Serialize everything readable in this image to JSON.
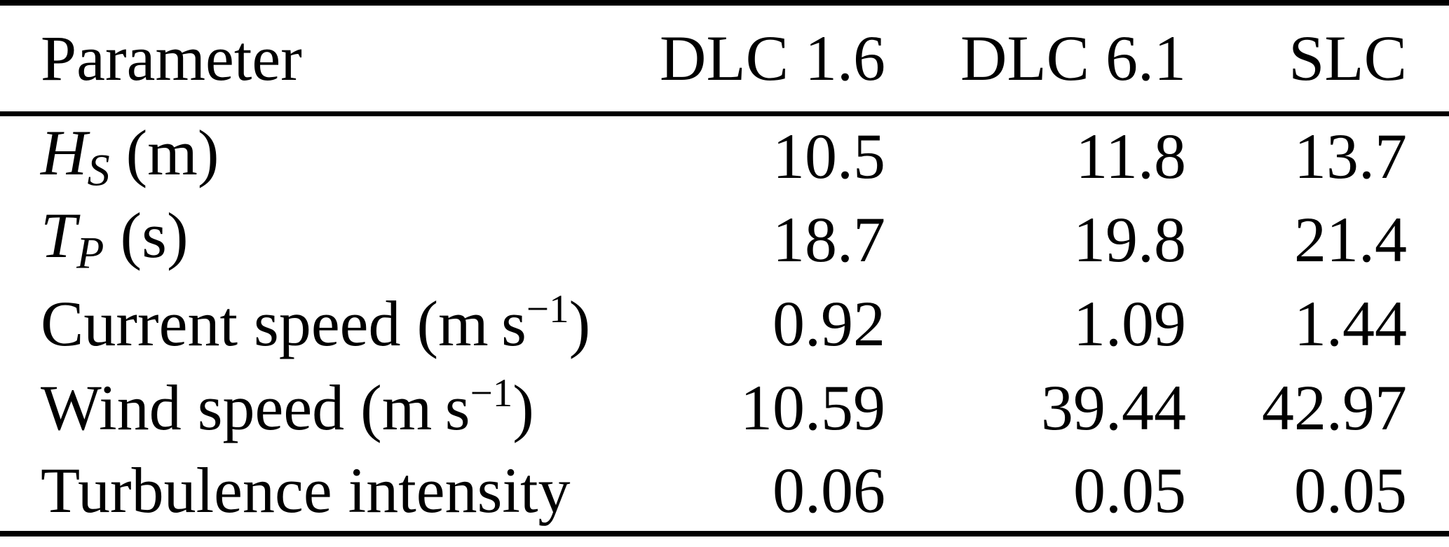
{
  "table": {
    "columns": [
      "Parameter",
      "DLC 1.6",
      "DLC 6.1",
      "SLC"
    ],
    "rows": [
      {
        "label": {
          "base": "H",
          "sub": "S",
          "unit": " (m)"
        },
        "values": [
          "10.5",
          "11.8",
          "13.7"
        ]
      },
      {
        "label": {
          "base": "T",
          "sub": "P",
          "unit": " (s)"
        },
        "values": [
          "18.7",
          "19.8",
          "21.4"
        ]
      },
      {
        "label": {
          "pre": "Current speed (m s",
          "sup": "−1",
          "post": ")"
        },
        "values": [
          "0.92",
          "1.09",
          "1.44"
        ]
      },
      {
        "label": {
          "pre": "Wind speed (m s",
          "sup": "−1",
          "post": ")"
        },
        "values": [
          "10.59",
          "39.44",
          "42.97"
        ]
      },
      {
        "label": {
          "pre": "Turbulence intensity"
        },
        "values": [
          "0.06",
          "0.05",
          "0.05"
        ]
      }
    ],
    "colors": {
      "text": "#000000",
      "background": "#ffffff",
      "rule": "#000000"
    }
  }
}
